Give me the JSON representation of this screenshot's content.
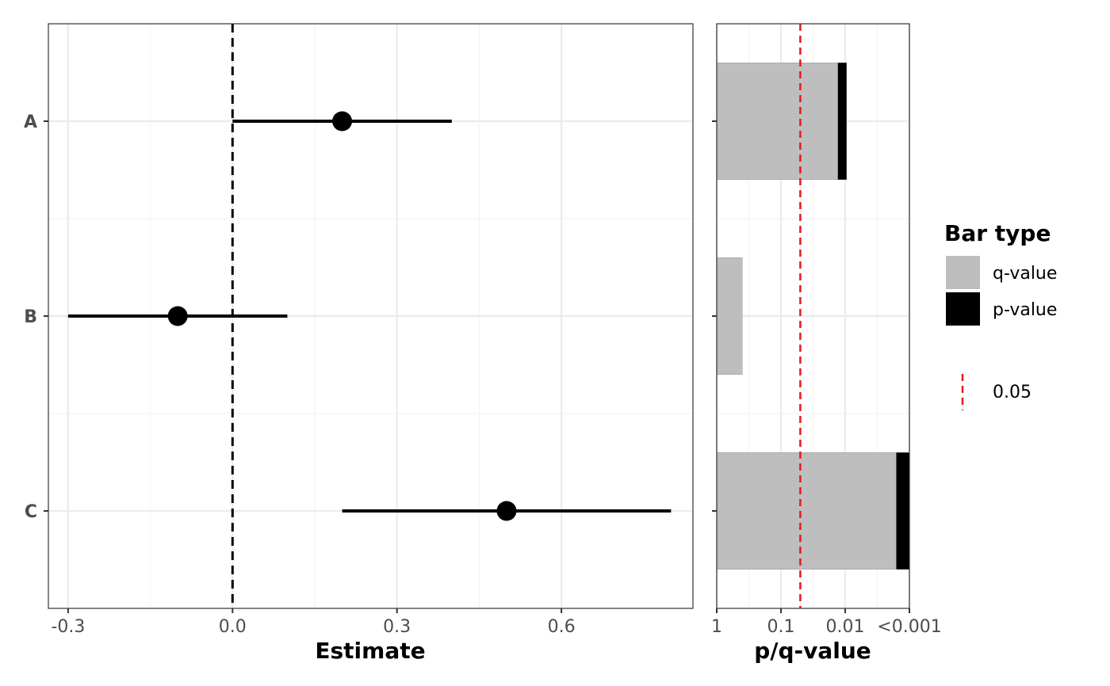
{
  "chart_data": [
    {
      "type": "forest",
      "categories": [
        "A",
        "B",
        "C"
      ],
      "estimates": [
        0.2,
        -0.1,
        0.5
      ],
      "ci_low": [
        0.0,
        -0.3,
        0.2
      ],
      "ci_high": [
        0.4,
        0.1,
        0.8
      ],
      "xlim": [
        -0.336,
        0.84
      ],
      "xticks": [
        -0.3,
        0.0,
        0.3,
        0.6
      ],
      "xtick_labels": [
        "-0.3",
        "0.0",
        "0.3",
        "0.6"
      ],
      "reference_line": 0.0,
      "xlabel": "Estimate",
      "grid": true
    },
    {
      "type": "bar",
      "orientation": "horizontal",
      "scale": "-log10",
      "categories": [
        "A",
        "B",
        "C"
      ],
      "series": [
        {
          "name": "q-value",
          "values": [
            0.013,
            0.4,
            0.0016
          ]
        },
        {
          "name": "p-value",
          "values": [
            0.0095,
            0.4,
            0.001
          ]
        }
      ],
      "xlim_neglog10": [
        0,
        3
      ],
      "xticks_neglog10": [
        0,
        1,
        2,
        3
      ],
      "xtick_labels": [
        "1",
        "0.1",
        "0.01",
        "<0.001"
      ],
      "threshold": 0.05,
      "xlabel": "p/q-value",
      "grid": true
    }
  ],
  "legend": {
    "title": "Bar type",
    "items": [
      {
        "label": "q-value",
        "color": "#bebebe"
      },
      {
        "label": "p-value",
        "color": "#000000"
      }
    ],
    "threshold_label": "0.05",
    "threshold_color": "#e41a1c"
  },
  "colors": {
    "grid_major": "#ebebeb",
    "grid_minor": "#f4f4f4",
    "panel_border": "#333333",
    "point": "#000000",
    "q_bar": "#bebebe",
    "p_bar": "#000000",
    "threshold": "#e41a1c"
  }
}
